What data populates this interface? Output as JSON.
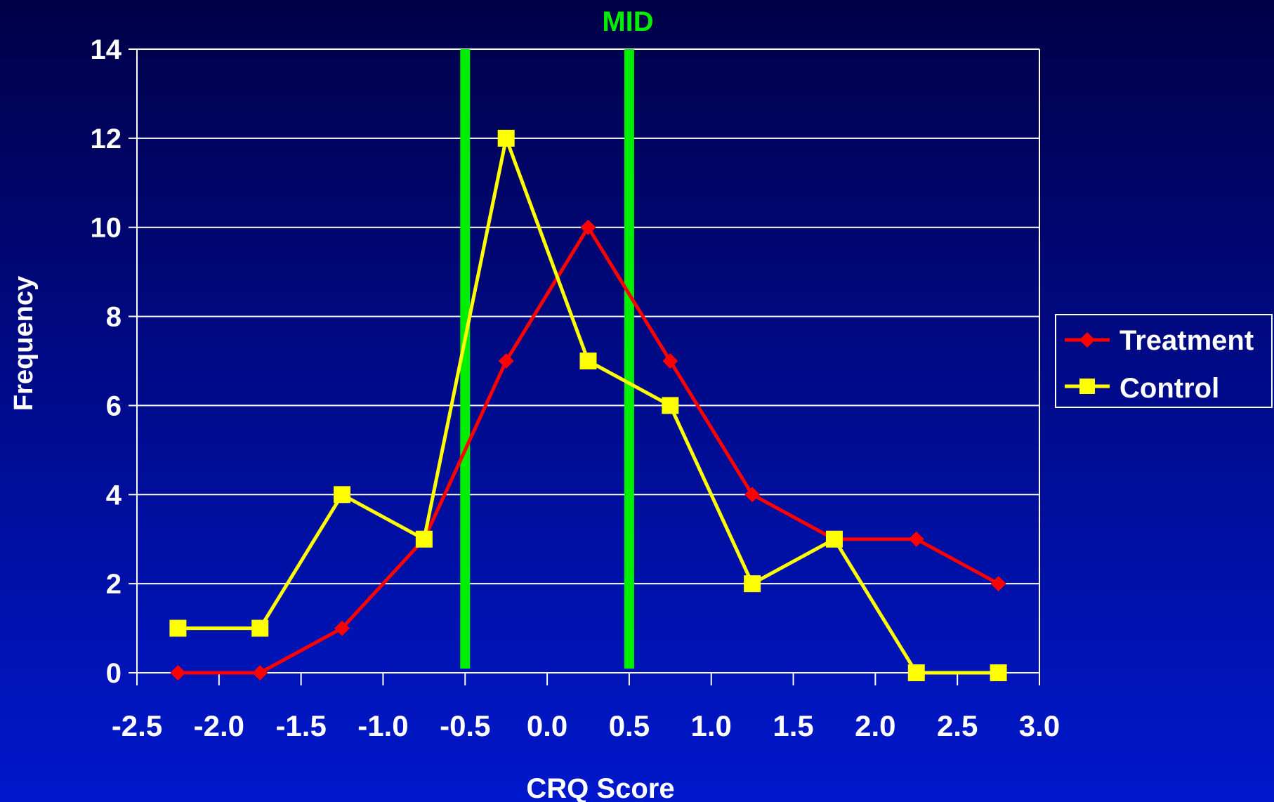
{
  "chart_data": {
    "type": "line",
    "xlabel": "CRQ Score",
    "ylabel": "Frequency",
    "xlim": [
      -2.5,
      3.0
    ],
    "ylim": [
      0,
      14
    ],
    "x_ticks": [
      "-2.5",
      "-2.0",
      "-1.5",
      "-1.0",
      "-0.5",
      "0.0",
      "0.5",
      "1.0",
      "1.5",
      "2.0",
      "2.5",
      "3.0"
    ],
    "y_ticks": [
      "0",
      "2",
      "4",
      "6",
      "8",
      "10",
      "12",
      "14"
    ],
    "grid": "horizontal",
    "legend_position": "right",
    "x": [
      -2.25,
      -1.75,
      -1.25,
      -0.75,
      -0.25,
      0.25,
      0.75,
      1.25,
      1.75,
      2.25,
      2.75
    ],
    "series": [
      {
        "name": "Treatment",
        "color": "#ff0000",
        "marker": "diamond",
        "values": [
          0,
          0,
          1,
          3,
          7,
          10,
          7,
          4,
          3,
          3,
          2
        ]
      },
      {
        "name": "Control",
        "color": "#ffff00",
        "marker": "square",
        "values": [
          1,
          1,
          4,
          3,
          12,
          7,
          6,
          2,
          3,
          0,
          0
        ]
      }
    ],
    "annotations": [
      {
        "text": "MID",
        "color": "#00ee00",
        "x_lines": [
          -0.5,
          0.5
        ]
      }
    ]
  }
}
